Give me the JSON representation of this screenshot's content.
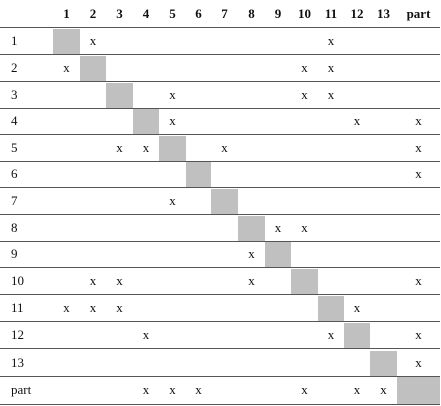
{
  "table": {
    "column_headers": [
      "1",
      "2",
      "3",
      "4",
      "5",
      "6",
      "7",
      "8",
      "9",
      "10",
      "11",
      "12",
      "13",
      "part"
    ],
    "rows": [
      {
        "label": "1",
        "cells": [
          "",
          "x",
          "",
          "",
          "",
          "",
          "",
          "",
          "",
          "",
          "x",
          "",
          "",
          ""
        ]
      },
      {
        "label": "2",
        "cells": [
          "x",
          "",
          "",
          "",
          "",
          "",
          "",
          "",
          "",
          "x",
          "x",
          "",
          "",
          ""
        ]
      },
      {
        "label": "3",
        "cells": [
          "",
          "",
          "",
          "",
          "x",
          "",
          "",
          "",
          "",
          "x",
          "x",
          "",
          "",
          ""
        ]
      },
      {
        "label": "4",
        "cells": [
          "",
          "",
          "",
          "",
          "x",
          "",
          "",
          "",
          "",
          "",
          "",
          "x",
          "",
          "x"
        ]
      },
      {
        "label": "5",
        "cells": [
          "",
          "",
          "x",
          "x",
          "",
          "",
          "x",
          "",
          "",
          "",
          "",
          "",
          "",
          "x"
        ]
      },
      {
        "label": "6",
        "cells": [
          "",
          "",
          "",
          "",
          "",
          "",
          "",
          "",
          "",
          "",
          "",
          "",
          "",
          "x"
        ]
      },
      {
        "label": "7",
        "cells": [
          "",
          "",
          "",
          "",
          "x",
          "",
          "",
          "",
          "",
          "",
          "",
          "",
          "",
          ""
        ]
      },
      {
        "label": "8",
        "cells": [
          "",
          "",
          "",
          "",
          "",
          "",
          "",
          "",
          "x",
          "x",
          "",
          "",
          "",
          ""
        ]
      },
      {
        "label": "9",
        "cells": [
          "",
          "",
          "",
          "",
          "",
          "",
          "",
          "x",
          "",
          "",
          "",
          "",
          "",
          ""
        ]
      },
      {
        "label": "10",
        "cells": [
          "",
          "x",
          "x",
          "",
          "",
          "",
          "",
          "x",
          "",
          "",
          "",
          "",
          "",
          "x"
        ]
      },
      {
        "label": "11",
        "cells": [
          "x",
          "x",
          "x",
          "",
          "",
          "",
          "",
          "",
          "",
          "",
          "",
          "x",
          "",
          ""
        ]
      },
      {
        "label": "12",
        "cells": [
          "",
          "",
          "",
          "x",
          "",
          "",
          "",
          "",
          "",
          "",
          "x",
          "",
          "",
          "x"
        ]
      },
      {
        "label": "13",
        "cells": [
          "",
          "",
          "",
          "",
          "",
          "",
          "",
          "",
          "",
          "",
          "",
          "",
          "",
          "x"
        ]
      },
      {
        "label": "part",
        "cells": [
          "",
          "",
          "",
          "x",
          "x",
          "x",
          "",
          "",
          "",
          "x",
          "",
          "x",
          "x",
          ""
        ]
      }
    ]
  }
}
